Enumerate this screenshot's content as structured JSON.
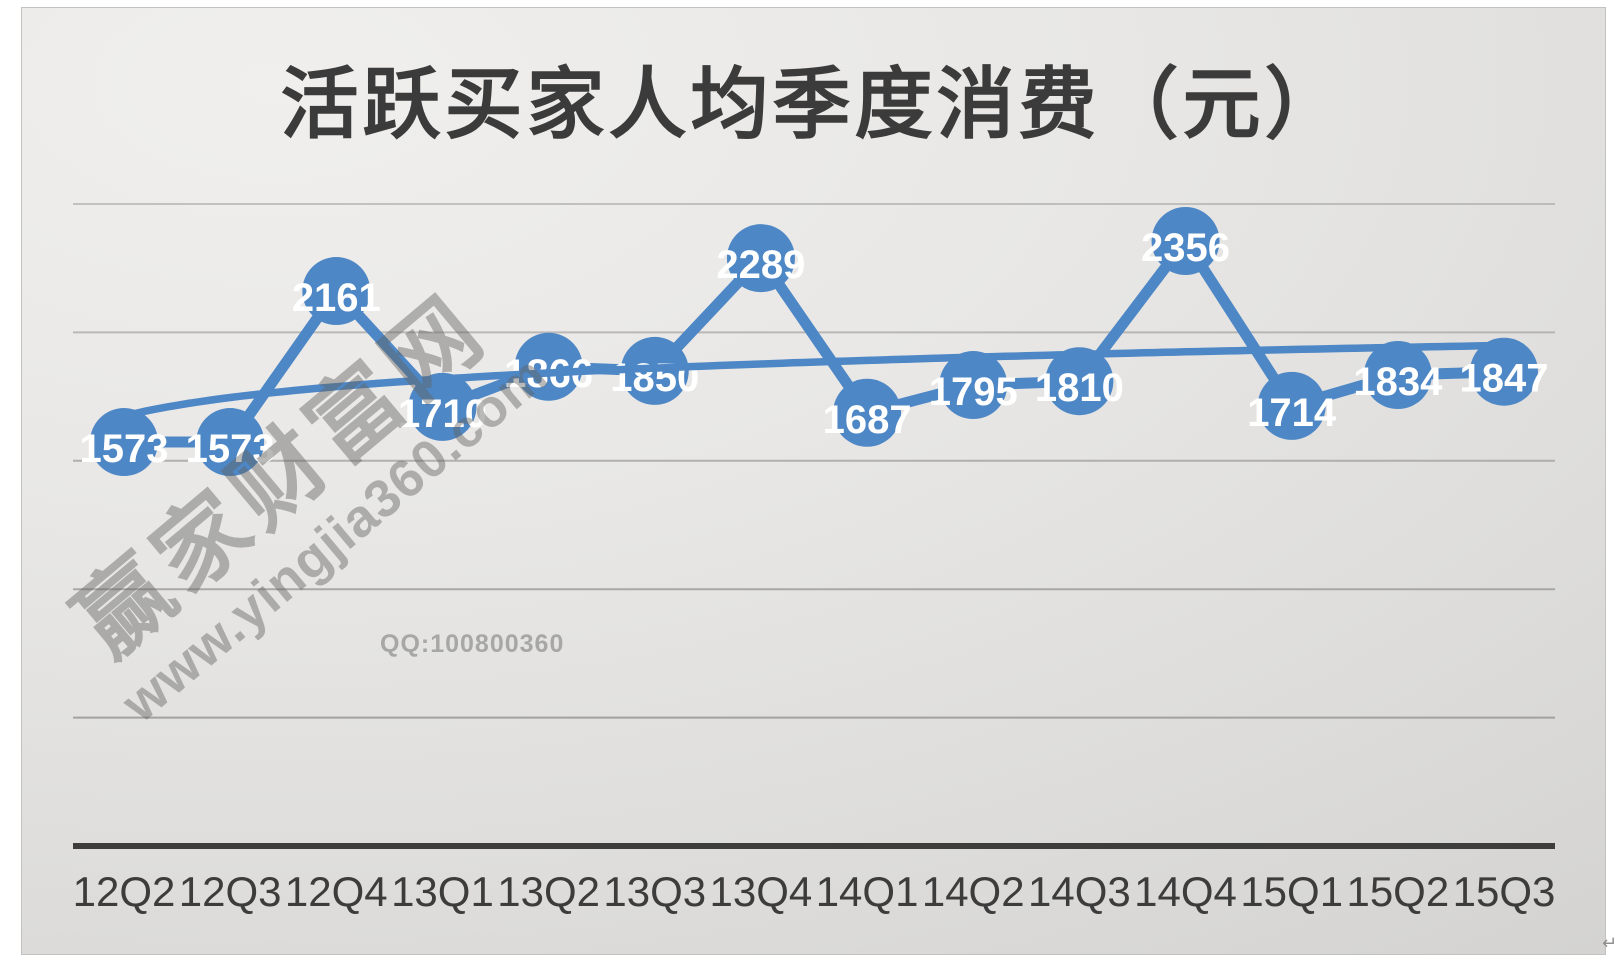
{
  "chart_data": {
    "type": "line",
    "title": "活跃买家人均季度消费（元）",
    "categories": [
      "12Q2",
      "12Q3",
      "12Q4",
      "13Q1",
      "13Q2",
      "13Q3",
      "13Q4",
      "14Q1",
      "14Q2",
      "14Q3",
      "14Q4",
      "15Q1",
      "15Q2",
      "15Q3"
    ],
    "series": [
      {
        "values": [
          1573,
          1573,
          2161,
          1710,
          1866,
          1850,
          2289,
          1687,
          1795,
          1810,
          2356,
          1714,
          1834,
          1847
        ]
      }
    ],
    "data_labels": true,
    "trendline": {
      "type": "logarithmic",
      "series": 0
    },
    "ylim": [
      0,
      2500
    ],
    "gridline_values": [
      500,
      1000,
      1500,
      2000,
      2500
    ],
    "grid": true,
    "legend": "none",
    "colors": {
      "series": "#4e87c6",
      "data_label": "#ffffff",
      "axis_line": "#3d3d3d",
      "gridline": "#9f9e9c",
      "category_label": "#3c3c3c",
      "title": "#3b3b3b"
    }
  },
  "watermark": {
    "brand": "赢家财富网",
    "url": "www.yingjia360.com",
    "qq": "QQ:100800360",
    "return_mark": "↵"
  }
}
